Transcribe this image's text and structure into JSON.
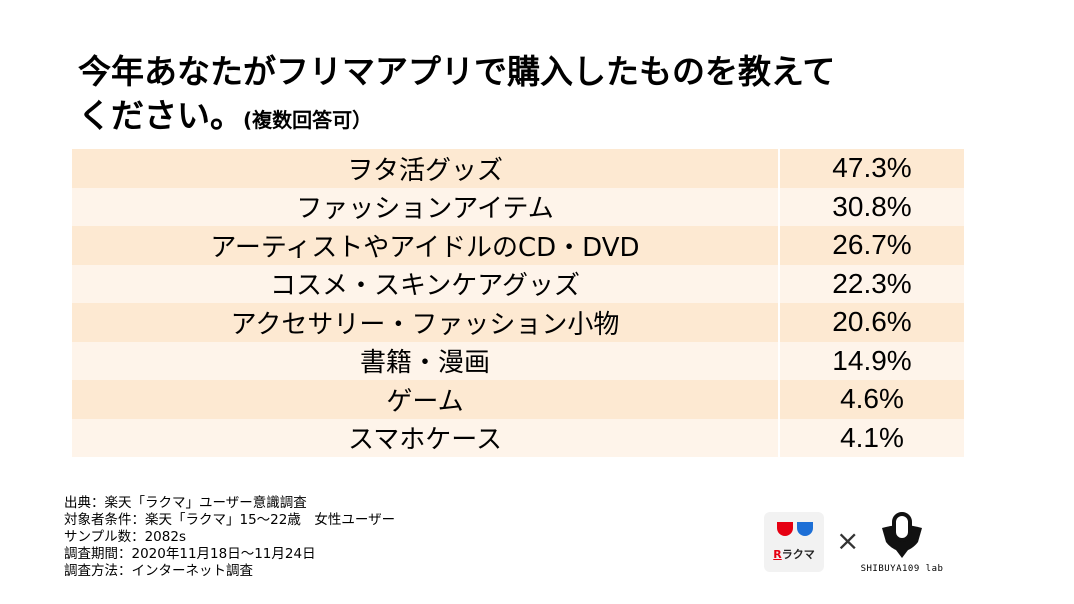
{
  "title": {
    "line1": "今年あなたがフリマアプリで購入したものを教えて",
    "line2": "ください。",
    "line2_sub": "(複数回答可）"
  },
  "rows": [
    {
      "label": "ヲタ活グッズ",
      "value": "47.3%"
    },
    {
      "label": "ファッションアイテム",
      "value": "30.8%"
    },
    {
      "label": "アーティストやアイドルのCD・DVD",
      "value": "26.7%"
    },
    {
      "label": "コスメ・スキンケアグッズ",
      "value": "22.3%"
    },
    {
      "label": "アクセサリー・ファッション小物",
      "value": "20.6%"
    },
    {
      "label": "書籍・漫画",
      "value": "14.9%"
    },
    {
      "label": "ゲーム",
      "value": "4.6%"
    },
    {
      "label": "スマホケース",
      "value": "4.1%"
    }
  ],
  "source": {
    "line1": "出典：楽天「ラクマ」ユーザー意識調査",
    "line2": "対象者条件：楽天「ラクマ」15～22歳　女性ユーザー",
    "line3": "サンプル数：2082s",
    "line4": "調査期間：2020年11月18日～11月24日",
    "line5": "調査方法：インターネット調査"
  },
  "logos": {
    "rakuma_R": "R",
    "rakuma_text": "ラクマ",
    "times": "×",
    "shibuya_text": "SHIBUYA109 lab"
  },
  "colors": {
    "row_dark": "#fde9d2",
    "row_light": "#fef4ea",
    "rakuma_red": "#e60012",
    "rakuma_blue": "#1d6fd6"
  },
  "icons": [
    "rakuma-logo",
    "shibuya109-lab-logo"
  ]
}
